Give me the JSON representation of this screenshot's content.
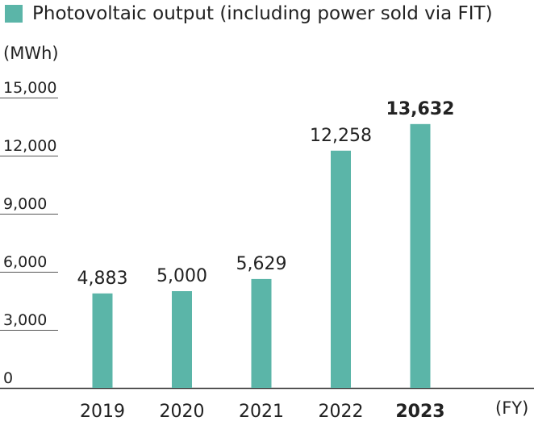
{
  "chart_data": {
    "type": "bar",
    "title": "",
    "legend": {
      "label": "Photovoltaic output (including power sold via FIT)",
      "placement": "top-left"
    },
    "ylabel": "(MWh)",
    "xlabel": "(FY)",
    "ylim": [
      0,
      15000
    ],
    "yticks": [
      0,
      3000,
      6000,
      9000,
      12000,
      15000
    ],
    "ytick_labels": [
      "0",
      "3,000",
      "6,000",
      "9,000",
      "12,000",
      "15,000"
    ],
    "categories": [
      "2019",
      "2020",
      "2021",
      "2022",
      "2023"
    ],
    "values": [
      4883,
      5000,
      5629,
      12258,
      13632
    ],
    "value_labels": [
      "4,883",
      "5,000",
      "5,629",
      "12,258",
      "13,632"
    ],
    "highlight_index": 4,
    "grid": false,
    "colors": {
      "bar": "#5bb5a8",
      "axis": "#333333",
      "tick": "#555555"
    }
  }
}
